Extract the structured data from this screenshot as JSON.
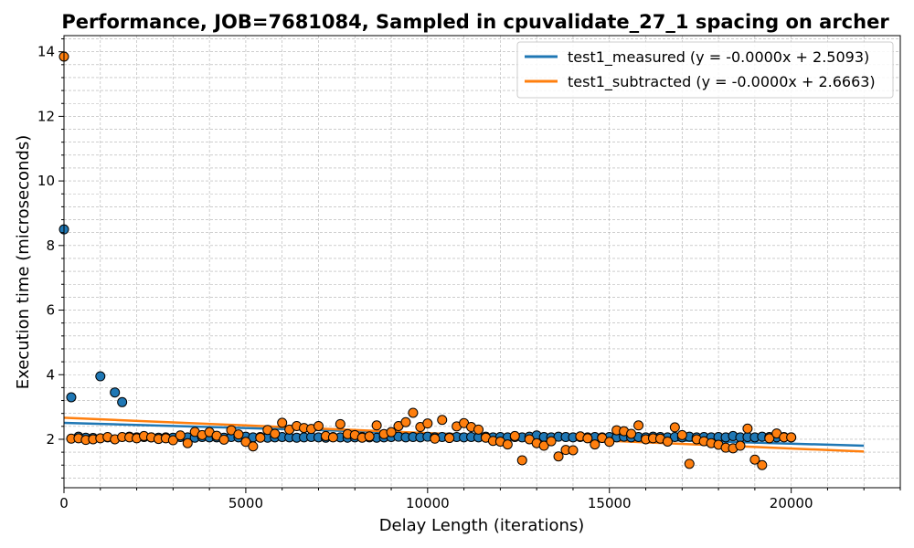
{
  "chart_data": {
    "type": "scatter",
    "title": "Performance, JOB=7681084, Sampled in cpuvalidate_27_1 spacing on archer",
    "xlabel": "Delay Length (iterations)",
    "ylabel": "Execution time (microseconds)",
    "xlim": [
      0,
      23000
    ],
    "ylim": [
      0.5,
      14.5
    ],
    "xticks": [
      0,
      5000,
      10000,
      15000,
      20000
    ],
    "yticks": [
      2,
      4,
      6,
      8,
      10,
      12,
      14
    ],
    "grid": true,
    "legend_position": "top-right",
    "series": [
      {
        "name": "test1_measured",
        "legend_label": "test1_measured (y = -0.0000x + 2.5093)",
        "color": "#1f77b4",
        "fit": {
          "intercept": 2.5093,
          "x_end": 22000,
          "y_end": 1.8
        },
        "points": [
          [
            0,
            8.5
          ],
          [
            200,
            3.3
          ],
          [
            400,
            2.08
          ],
          [
            600,
            2.05
          ],
          [
            800,
            2.04
          ],
          [
            1000,
            3.95
          ],
          [
            1200,
            2.06
          ],
          [
            1400,
            3.45
          ],
          [
            1600,
            3.15
          ],
          [
            1800,
            2.08
          ],
          [
            2000,
            2.06
          ],
          [
            2200,
            2.07
          ],
          [
            2400,
            2.06
          ],
          [
            2600,
            2.05
          ],
          [
            2800,
            2.06
          ],
          [
            3000,
            2.05
          ],
          [
            3200,
            2.07
          ],
          [
            3400,
            2.06
          ],
          [
            3600,
            2.05
          ],
          [
            3800,
            2.07
          ],
          [
            4000,
            2.06
          ],
          [
            4200,
            2.06
          ],
          [
            4400,
            2.05
          ],
          [
            4600,
            2.07
          ],
          [
            4800,
            2.06
          ],
          [
            5000,
            2.08
          ],
          [
            5200,
            2.06
          ],
          [
            5400,
            2.07
          ],
          [
            5600,
            2.05
          ],
          [
            5800,
            2.06
          ],
          [
            6000,
            2.07
          ],
          [
            6200,
            2.06
          ],
          [
            6400,
            2.05
          ],
          [
            6600,
            2.06
          ],
          [
            6800,
            2.07
          ],
          [
            7000,
            2.06
          ],
          [
            7200,
            2.05
          ],
          [
            7400,
            2.07
          ],
          [
            7600,
            2.06
          ],
          [
            7800,
            2.05
          ],
          [
            8000,
            2.06
          ],
          [
            8200,
            2.07
          ],
          [
            8400,
            2.06
          ],
          [
            8600,
            2.05
          ],
          [
            8800,
            2.06
          ],
          [
            9000,
            2.07
          ],
          [
            9200,
            2.08
          ],
          [
            9400,
            2.06
          ],
          [
            9600,
            2.07
          ],
          [
            9800,
            2.06
          ],
          [
            10000,
            2.08
          ],
          [
            10200,
            2.06
          ],
          [
            10400,
            2.07
          ],
          [
            10600,
            2.06
          ],
          [
            10800,
            2.07
          ],
          [
            11000,
            2.06
          ],
          [
            11200,
            2.07
          ],
          [
            11400,
            2.06
          ],
          [
            11600,
            2.08
          ],
          [
            11800,
            2.06
          ],
          [
            12000,
            2.07
          ],
          [
            12200,
            2.06
          ],
          [
            12400,
            2.07
          ],
          [
            12600,
            2.06
          ],
          [
            12800,
            2.08
          ],
          [
            13000,
            2.12
          ],
          [
            13200,
            2.07
          ],
          [
            13400,
            2.06
          ],
          [
            13600,
            2.08
          ],
          [
            13800,
            2.07
          ],
          [
            14000,
            2.06
          ],
          [
            14200,
            2.07
          ],
          [
            14400,
            2.06
          ],
          [
            14600,
            2.07
          ],
          [
            14800,
            2.06
          ],
          [
            15000,
            2.07
          ],
          [
            15200,
            2.06
          ],
          [
            15400,
            2.08
          ],
          [
            15600,
            2.06
          ],
          [
            15800,
            2.07
          ],
          [
            16000,
            2.06
          ],
          [
            16200,
            2.08
          ],
          [
            16400,
            2.07
          ],
          [
            16600,
            2.06
          ],
          [
            16800,
            2.07
          ],
          [
            17000,
            2.06
          ],
          [
            17200,
            2.08
          ],
          [
            17400,
            2.06
          ],
          [
            17600,
            2.07
          ],
          [
            17800,
            2.06
          ],
          [
            18000,
            2.07
          ],
          [
            18200,
            2.06
          ],
          [
            18400,
            2.1
          ],
          [
            18600,
            2.06
          ],
          [
            18800,
            2.07
          ],
          [
            19000,
            2.06
          ],
          [
            19200,
            2.08
          ],
          [
            19400,
            2.07
          ],
          [
            19600,
            2.06
          ],
          [
            19800,
            2.07
          ],
          [
            20000,
            2.06
          ]
        ]
      },
      {
        "name": "test1_subtracted",
        "legend_label": "test1_subtracted (y = -0.0000x + 2.6663)",
        "color": "#ff7f0e",
        "fit": {
          "intercept": 2.6663,
          "x_end": 22000,
          "y_end": 1.62
        },
        "points": [
          [
            0,
            13.85
          ],
          [
            200,
            2.02
          ],
          [
            400,
            2.03
          ],
          [
            600,
            1.98
          ],
          [
            800,
            2.0
          ],
          [
            1000,
            2.03
          ],
          [
            1200,
            2.07
          ],
          [
            1400,
            2.0
          ],
          [
            1600,
            2.07
          ],
          [
            1800,
            2.06
          ],
          [
            2000,
            2.03
          ],
          [
            2200,
            2.1
          ],
          [
            2400,
            2.06
          ],
          [
            2600,
            2.01
          ],
          [
            2800,
            2.03
          ],
          [
            3000,
            1.97
          ],
          [
            3200,
            2.12
          ],
          [
            3400,
            1.88
          ],
          [
            3600,
            2.23
          ],
          [
            3800,
            2.13
          ],
          [
            4000,
            2.22
          ],
          [
            4200,
            2.11
          ],
          [
            4400,
            1.99
          ],
          [
            4600,
            2.28
          ],
          [
            4800,
            2.15
          ],
          [
            5000,
            1.92
          ],
          [
            5200,
            1.78
          ],
          [
            5400,
            2.05
          ],
          [
            5600,
            2.29
          ],
          [
            5800,
            2.17
          ],
          [
            6000,
            2.51
          ],
          [
            6200,
            2.3
          ],
          [
            6400,
            2.41
          ],
          [
            6600,
            2.35
          ],
          [
            6800,
            2.32
          ],
          [
            7000,
            2.41
          ],
          [
            7200,
            2.1
          ],
          [
            7400,
            2.06
          ],
          [
            7600,
            2.47
          ],
          [
            7800,
            2.16
          ],
          [
            8000,
            2.13
          ],
          [
            8200,
            2.05
          ],
          [
            8400,
            2.09
          ],
          [
            8600,
            2.43
          ],
          [
            8800,
            2.16
          ],
          [
            9000,
            2.22
          ],
          [
            9200,
            2.41
          ],
          [
            9400,
            2.53
          ],
          [
            9600,
            2.82
          ],
          [
            9800,
            2.38
          ],
          [
            10000,
            2.49
          ],
          [
            10200,
            2.02
          ],
          [
            10400,
            2.6
          ],
          [
            10600,
            2.04
          ],
          [
            10800,
            2.4
          ],
          [
            11000,
            2.5
          ],
          [
            11200,
            2.38
          ],
          [
            11400,
            2.3
          ],
          [
            11600,
            2.05
          ],
          [
            11800,
            1.95
          ],
          [
            12000,
            1.93
          ],
          [
            12200,
            1.84
          ],
          [
            12400,
            2.1
          ],
          [
            12600,
            1.35
          ],
          [
            12800,
            2.0
          ],
          [
            13000,
            1.88
          ],
          [
            13200,
            1.8
          ],
          [
            13400,
            1.94
          ],
          [
            13600,
            1.47
          ],
          [
            13800,
            1.67
          ],
          [
            14000,
            1.66
          ],
          [
            14200,
            2.09
          ],
          [
            14400,
            2.03
          ],
          [
            14600,
            1.84
          ],
          [
            14800,
            2.04
          ],
          [
            15000,
            1.92
          ],
          [
            15200,
            2.28
          ],
          [
            15400,
            2.25
          ],
          [
            15600,
            2.17
          ],
          [
            15800,
            2.43
          ],
          [
            16000,
            2.0
          ],
          [
            16200,
            2.03
          ],
          [
            16400,
            2.02
          ],
          [
            16600,
            1.93
          ],
          [
            16800,
            2.37
          ],
          [
            17000,
            2.13
          ],
          [
            17200,
            1.24
          ],
          [
            17400,
            2.0
          ],
          [
            17600,
            1.94
          ],
          [
            17800,
            1.88
          ],
          [
            18000,
            1.83
          ],
          [
            18200,
            1.74
          ],
          [
            18400,
            1.72
          ],
          [
            18600,
            1.8
          ],
          [
            18800,
            2.33
          ],
          [
            19000,
            1.37
          ],
          [
            19200,
            1.2
          ],
          [
            19400,
            2.03
          ],
          [
            19600,
            2.18
          ],
          [
            19800,
            2.06
          ],
          [
            20000,
            2.06
          ]
        ]
      }
    ]
  }
}
